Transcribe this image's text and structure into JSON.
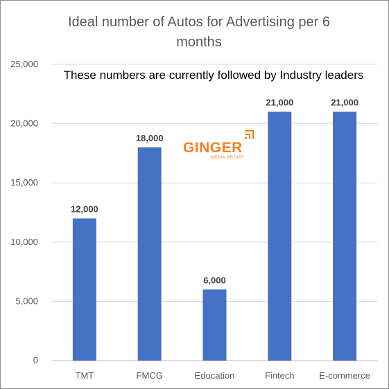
{
  "colors": {
    "bar": "#4472c4",
    "grid": "#d9d9d9",
    "axis": "#bfbfbf",
    "logo": "#f58220"
  },
  "logo": {
    "word": "GINGER",
    "tagline": "MEDIA GROUP"
  },
  "chart_data": {
    "type": "bar",
    "title_lines": [
      "Ideal number of Autos for Advertising per 6",
      "months"
    ],
    "subtitle": "These numbers are currently followed by Industry leaders",
    "categories": [
      "TMT",
      "FMCG",
      "Education",
      "Fintech",
      "E-commerce"
    ],
    "values": [
      12000,
      18000,
      6000,
      21000,
      21000
    ],
    "data_labels": [
      "12,000",
      "18,000",
      "6,000",
      "21,000",
      "21,000"
    ],
    "ylim": [
      0,
      25000
    ],
    "yticks": [
      0,
      5000,
      10000,
      15000,
      20000,
      25000
    ],
    "ytick_labels": [
      "0",
      "5,000",
      "10,000",
      "15,000",
      "20,000",
      "25,000"
    ],
    "grid": true,
    "legend": "none"
  }
}
